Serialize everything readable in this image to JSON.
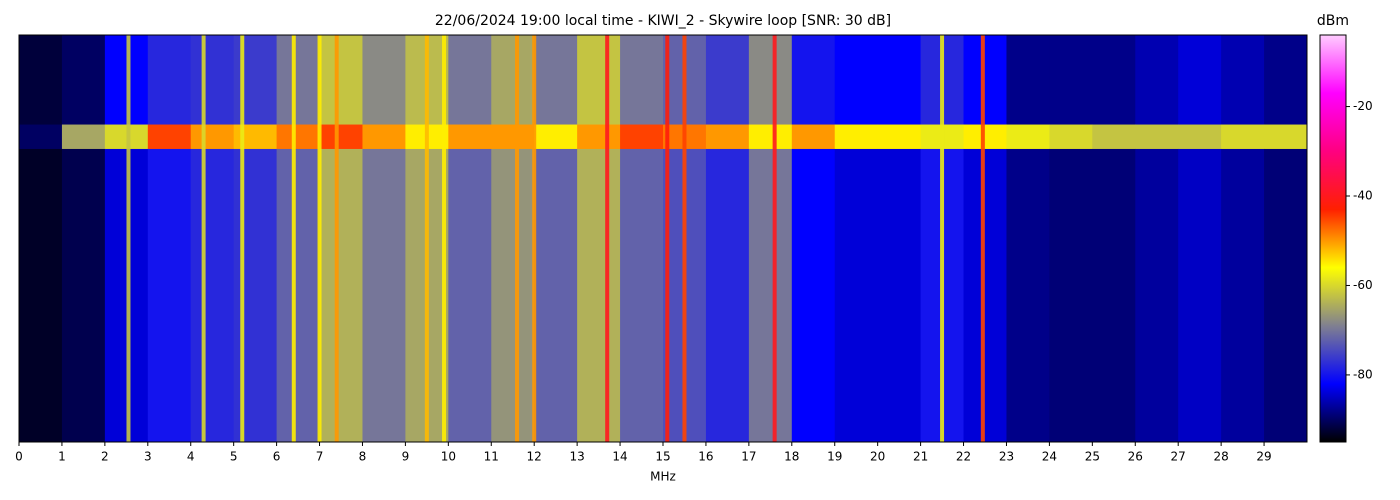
{
  "chart_data": {
    "type": "heatmap",
    "title": "22/06/2024 19:00 local time - KIWI_2 - Skywire loop [SNR: 30 dB]",
    "x_label": "MHz",
    "colorbar_label": "dBm",
    "xlim": [
      0,
      30
    ],
    "xticks": [
      0,
      1,
      2,
      3,
      4,
      5,
      6,
      7,
      8,
      9,
      10,
      11,
      12,
      13,
      14,
      15,
      16,
      17,
      18,
      19,
      20,
      21,
      22,
      23,
      24,
      25,
      26,
      27,
      28,
      29
    ],
    "x_bins": [
      0,
      1,
      2,
      3,
      4,
      5,
      6,
      7,
      8,
      9,
      10,
      11,
      12,
      13,
      14,
      15,
      16,
      17,
      18,
      19,
      20,
      21,
      22,
      23,
      24,
      25,
      26,
      27,
      28,
      29,
      30
    ],
    "rows": [
      null,
      null,
      null
    ],
    "z": [
      [
        -92,
        -90,
        -82,
        -78,
        -77,
        -76,
        -70,
        -62,
        -68,
        -63,
        -70,
        -65,
        -70,
        -62,
        -70,
        -72,
        -76,
        -68,
        -80,
        -82,
        -82,
        -78,
        -82,
        -88,
        -88,
        -88,
        -86,
        -84,
        -86,
        -88
      ],
      [
        -90,
        -65,
        -60,
        -45,
        -50,
        -52,
        -48,
        -45,
        -50,
        -55,
        -50,
        -50,
        -55,
        -50,
        -45,
        -48,
        -50,
        -55,
        -50,
        -55,
        -55,
        -58,
        -55,
        -58,
        -60,
        -62,
        -62,
        -62,
        -60,
        -60
      ],
      [
        -93,
        -91,
        -84,
        -80,
        -78,
        -77,
        -72,
        -64,
        -70,
        -65,
        -72,
        -67,
        -72,
        -64,
        -72,
        -74,
        -78,
        -70,
        -82,
        -84,
        -84,
        -80,
        -84,
        -88,
        -89,
        -89,
        -87,
        -85,
        -87,
        -89
      ]
    ],
    "lines": {
      "x": [
        2.55,
        4.3,
        5.2,
        6.4,
        7.0,
        7.4,
        9.5,
        9.9,
        11.6,
        12.0,
        13.7,
        15.1,
        15.5,
        17.6,
        21.5,
        22.45
      ],
      "values": [
        -62,
        -60,
        -58,
        -55,
        -55,
        -50,
        -52,
        -55,
        -50,
        -50,
        -40,
        -42,
        -45,
        -40,
        -58,
        -45
      ]
    },
    "clim": [
      -95,
      -4
    ],
    "colorbar_ticks": [
      -20,
      -40,
      -60,
      -80
    ],
    "colormap": [
      "#000000",
      "#0000ff",
      "#808090",
      "#ffff00",
      "#ff2000",
      "#ff0080",
      "#ff00ff",
      "#ffccff"
    ]
  }
}
